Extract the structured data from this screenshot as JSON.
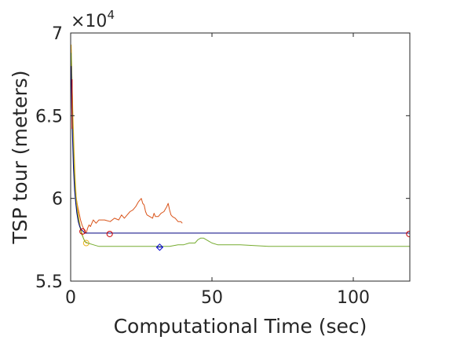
{
  "chart_data": {
    "type": "line",
    "xlabel": "Computational Time (sec)",
    "ylabel": "TSP tour (meters)",
    "exponent_label": "×10",
    "exponent_power": "4",
    "xlim": [
      0,
      120
    ],
    "ylim": [
      5.5,
      7.0
    ],
    "y_scale_factor": 10000,
    "xticks": [
      0,
      50,
      100
    ],
    "xtick_labels": [
      "0",
      "50",
      "100"
    ],
    "yticks": [
      5.5,
      6.0,
      6.5,
      7.0
    ],
    "ytick_labels": [
      "5.5",
      "6",
      "6.5",
      "7"
    ],
    "grid": false,
    "series": [
      {
        "color": "#d95319",
        "marker": "none",
        "points": [
          [
            0.2,
            6.9
          ],
          [
            0.5,
            6.68
          ],
          [
            0.8,
            6.45
          ],
          [
            1.2,
            6.22
          ],
          [
            1.6,
            6.08
          ],
          [
            2.0,
            6.0
          ],
          [
            2.5,
            5.95
          ],
          [
            3.0,
            5.91
          ],
          [
            3.5,
            5.87
          ],
          [
            4.0,
            5.84
          ],
          [
            4.5,
            5.82
          ],
          [
            5.0,
            5.8
          ],
          [
            5.5,
            5.79
          ],
          [
            6.0,
            5.82
          ],
          [
            6.5,
            5.84
          ],
          [
            7.0,
            5.83
          ],
          [
            8.0,
            5.87
          ],
          [
            9.0,
            5.85
          ],
          [
            10.0,
            5.87
          ],
          [
            12.0,
            5.87
          ],
          [
            14.0,
            5.86
          ],
          [
            15.5,
            5.88
          ],
          [
            17.0,
            5.87
          ],
          [
            18.0,
            5.9
          ],
          [
            19.0,
            5.88
          ],
          [
            20.0,
            5.9
          ],
          [
            21.0,
            5.92
          ],
          [
            22.0,
            5.93
          ],
          [
            23.0,
            5.95
          ],
          [
            24.0,
            5.98
          ],
          [
            25.0,
            6.0
          ],
          [
            25.5,
            5.97
          ],
          [
            26.0,
            5.96
          ],
          [
            26.5,
            5.92
          ],
          [
            27.0,
            5.9
          ],
          [
            28.0,
            5.89
          ],
          [
            29.0,
            5.88
          ],
          [
            29.5,
            5.91
          ],
          [
            30.0,
            5.89
          ],
          [
            31.0,
            5.89
          ],
          [
            32.0,
            5.91
          ],
          [
            33.0,
            5.92
          ],
          [
            34.0,
            5.95
          ],
          [
            34.5,
            5.97
          ],
          [
            35.0,
            5.93
          ],
          [
            35.5,
            5.9
          ],
          [
            36.0,
            5.89
          ],
          [
            37.0,
            5.88
          ],
          [
            38.0,
            5.86
          ],
          [
            39.0,
            5.86
          ],
          [
            39.5,
            5.85
          ]
        ]
      },
      {
        "color": "#edb120",
        "marker": "circle",
        "markers": [
          [
            5.5,
            5.73
          ]
        ],
        "points": [
          [
            0.2,
            6.93
          ],
          [
            0.5,
            6.7
          ],
          [
            0.8,
            6.5
          ],
          [
            1.2,
            6.3
          ],
          [
            1.6,
            6.12
          ],
          [
            2.0,
            6.0
          ],
          [
            2.5,
            5.93
          ],
          [
            3.0,
            5.87
          ],
          [
            3.5,
            5.82
          ],
          [
            4.0,
            5.79
          ],
          [
            4.5,
            5.76
          ],
          [
            5.0,
            5.74
          ],
          [
            5.5,
            5.73
          ],
          [
            6.0,
            5.73
          ]
        ]
      },
      {
        "color": "#77ac30",
        "marker": "none",
        "points": [
          [
            0.2,
            6.88
          ],
          [
            0.5,
            6.62
          ],
          [
            0.8,
            6.38
          ],
          [
            1.2,
            6.18
          ],
          [
            1.6,
            6.04
          ],
          [
            2.0,
            5.96
          ],
          [
            2.5,
            5.9
          ],
          [
            3.0,
            5.85
          ],
          [
            3.5,
            5.81
          ],
          [
            4.0,
            5.78
          ],
          [
            4.5,
            5.76
          ],
          [
            5.0,
            5.74
          ],
          [
            6.0,
            5.73
          ],
          [
            8.0,
            5.72
          ],
          [
            10.0,
            5.71
          ],
          [
            15.0,
            5.71
          ],
          [
            20.0,
            5.71
          ],
          [
            25.0,
            5.71
          ],
          [
            30.0,
            5.71
          ],
          [
            33.0,
            5.71
          ],
          [
            35.0,
            5.71
          ],
          [
            38.0,
            5.72
          ],
          [
            40.0,
            5.72
          ],
          [
            42.0,
            5.73
          ],
          [
            44.0,
            5.73
          ],
          [
            45.0,
            5.75
          ],
          [
            46.0,
            5.76
          ],
          [
            47.0,
            5.76
          ],
          [
            48.0,
            5.75
          ],
          [
            49.0,
            5.74
          ],
          [
            50.0,
            5.73
          ],
          [
            52.0,
            5.72
          ],
          [
            55.0,
            5.72
          ],
          [
            60.0,
            5.72
          ],
          [
            70.0,
            5.71
          ],
          [
            80.0,
            5.71
          ],
          [
            90.0,
            5.71
          ],
          [
            100.0,
            5.71
          ],
          [
            110.0,
            5.71
          ],
          [
            120.0,
            5.71
          ]
        ]
      },
      {
        "color": "#000080",
        "marker": "none",
        "points": [
          [
            0.2,
            6.8
          ],
          [
            0.4,
            6.55
          ],
          [
            0.7,
            6.35
          ],
          [
            1.0,
            6.18
          ],
          [
            1.4,
            6.05
          ],
          [
            1.8,
            5.97
          ],
          [
            2.2,
            5.91
          ],
          [
            2.7,
            5.86
          ],
          [
            3.2,
            5.83
          ],
          [
            3.8,
            5.81
          ],
          [
            4.5,
            5.8
          ],
          [
            5.0,
            5.79
          ],
          [
            6.0,
            5.79
          ],
          [
            10.0,
            5.79
          ],
          [
            20.0,
            5.79
          ],
          [
            30.0,
            5.79
          ],
          [
            40.0,
            5.79
          ],
          [
            50.0,
            5.79
          ],
          [
            60.0,
            5.79
          ],
          [
            70.0,
            5.79
          ],
          [
            80.0,
            5.79
          ],
          [
            90.0,
            5.79
          ],
          [
            100.0,
            5.79
          ],
          [
            110.0,
            5.79
          ],
          [
            120.0,
            5.79
          ]
        ]
      },
      {
        "color": "#0000cc",
        "marker": "diamond",
        "markers": [
          [
            31.5,
            5.705
          ]
        ],
        "points": [
          [
            30.5,
            5.705
          ],
          [
            32.5,
            5.705
          ]
        ]
      },
      {
        "color": "#cc0000",
        "marker": "circle",
        "markers": [
          [
            4.2,
            5.8
          ],
          [
            13.8,
            5.785
          ],
          [
            119.8,
            5.785
          ]
        ],
        "points": []
      },
      {
        "color": "#cc0000",
        "marker": "vline",
        "points": [
          [
            0.5,
            6.72
          ],
          [
            0.5,
            6.42
          ]
        ]
      }
    ]
  }
}
